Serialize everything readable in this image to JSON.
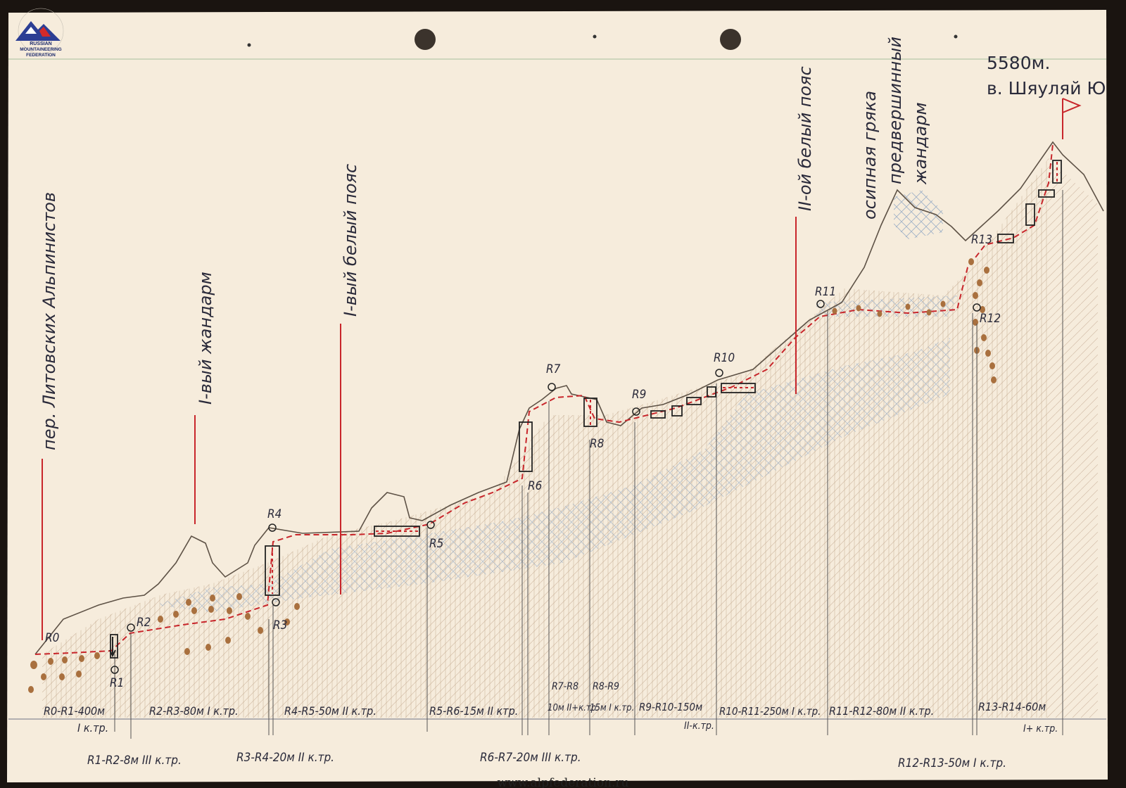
{
  "logo": {
    "name": "Russian Mountaineering Federation logo",
    "arc_text": "ФЕДЕРАЦИЯ АЛЬПИНИЗМА РОССИИ",
    "line1": "RUSSIAN",
    "line2": "MOUNTAINEERING",
    "line3": "FEDERATION"
  },
  "footer": {
    "url": "www.alpfederation.ru"
  },
  "summit": {
    "height": "5580м.",
    "name": "в. Шяуляй Ю"
  },
  "zones": [
    {
      "id": "pass",
      "label": "пер. Литовских Альпинистов"
    },
    {
      "id": "gendarme1",
      "label": "I-вый жандарм"
    },
    {
      "id": "white_belt1",
      "label": "I-вый белый пояс"
    },
    {
      "id": "white_belt2",
      "label": "II-ой белый пояс"
    },
    {
      "id": "ridge",
      "label": "осипная гряка"
    },
    {
      "id": "pre_summit",
      "label": "предвершинный"
    },
    {
      "id": "gendarme2",
      "label": "жандарм"
    }
  ],
  "points": [
    "R0",
    "R1",
    "R2",
    "R3",
    "R4",
    "R5",
    "R6",
    "R7",
    "R8",
    "R9",
    "R10",
    "R11",
    "R12",
    "R13"
  ],
  "sections_top": [
    {
      "range": "R0-R1-400м",
      "grade": "I к.тр."
    },
    {
      "range": "R2-R3-80м I к.тр.",
      "grade": ""
    },
    {
      "range": "R4-R5-50м II к.тр.",
      "grade": ""
    },
    {
      "range": "R5-R6-15м II ктр.",
      "grade": ""
    },
    {
      "range": "R7-R8",
      "grade": "10м II+к.тр."
    },
    {
      "range": "R8-R9",
      "grade": "15м I к.тр."
    },
    {
      "range": "R9-R10-150м",
      "grade": "II-к.тр."
    },
    {
      "range": "R10-R11-250м I к.тр.",
      "grade": ""
    },
    {
      "range": "R11-R12-80м II к.тр.",
      "grade": ""
    },
    {
      "range": "R13-R14-60м",
      "grade": "I+ к.тр."
    }
  ],
  "sections_bottom": [
    {
      "range": "R1-R2-8м III к.тр."
    },
    {
      "range": "R3-R4-20м II к.тр."
    },
    {
      "range": "R6-R7-20м III к.тр."
    },
    {
      "range": "R12-R13-50м I к.тр."
    }
  ]
}
